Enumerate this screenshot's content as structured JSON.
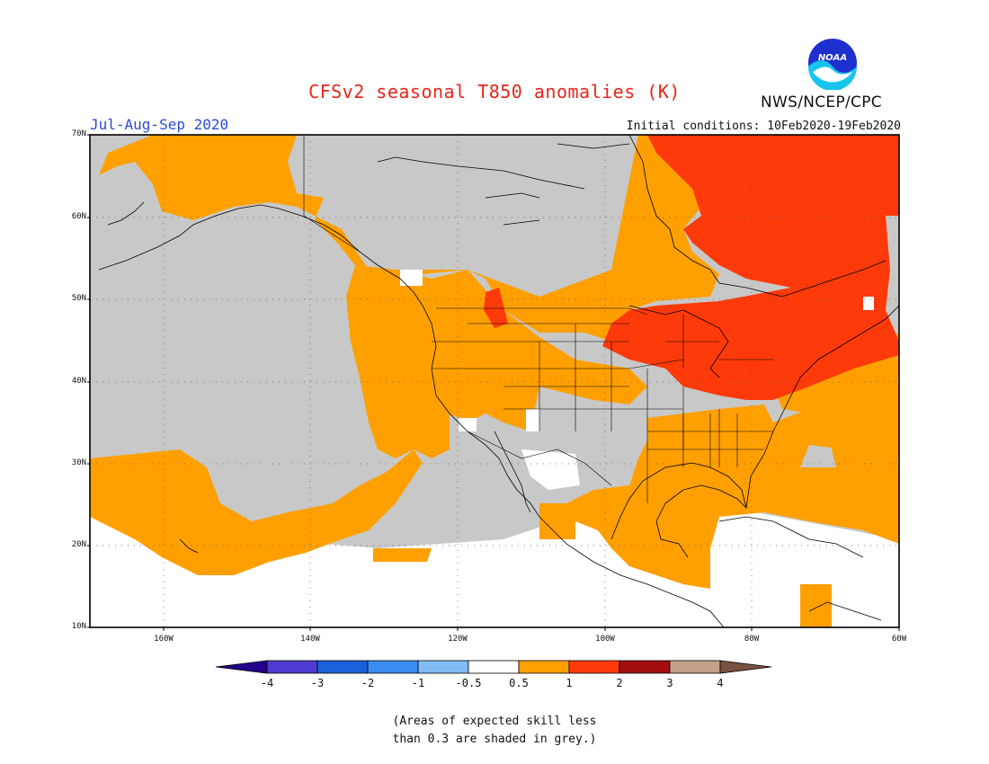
{
  "header": {
    "title": "CFSv2 seasonal T850 anomalies (K)",
    "season": "Jul-Aug-Sep 2020",
    "initial_conditions": "Initial conditions: 10Feb2020-19Feb2020",
    "agency": "NWS/NCEP/CPC",
    "logo_text": "NOAA"
  },
  "map": {
    "lat_labels": [
      "70N",
      "60N",
      "50N",
      "40N",
      "30N",
      "20N",
      "10N"
    ],
    "lon_labels": [
      "160W",
      "140W",
      "120W",
      "100W",
      "80W",
      "60W"
    ],
    "extent": {
      "lon_min": -170,
      "lon_max": -60,
      "lat_min": 10,
      "lat_max": 70
    }
  },
  "colorbar": {
    "labels": [
      "-4",
      "-3",
      "-2",
      "-1",
      "-0.5",
      "0.5",
      "1",
      "2",
      "3",
      "4"
    ],
    "colors": [
      "#240088",
      "#4d3ccf",
      "#1a60d8",
      "#3a8cf0",
      "#82bcf4",
      "#ffffff",
      "#ffa000",
      "#ff3a0a",
      "#a30f10",
      "#c4a08a",
      "#7a5040"
    ]
  },
  "colors": {
    "skill_grey": "#c8c8c8",
    "anomaly_0_5_to_1": "#ffa000",
    "anomaly_1_to_2": "#ff3a0a",
    "title_red": "#e8241a",
    "season_blue": "#2a4ad8"
  },
  "footnote": {
    "line1": "(Areas of expected skill less",
    "line2": "than 0.3 are shaded in grey.)"
  }
}
